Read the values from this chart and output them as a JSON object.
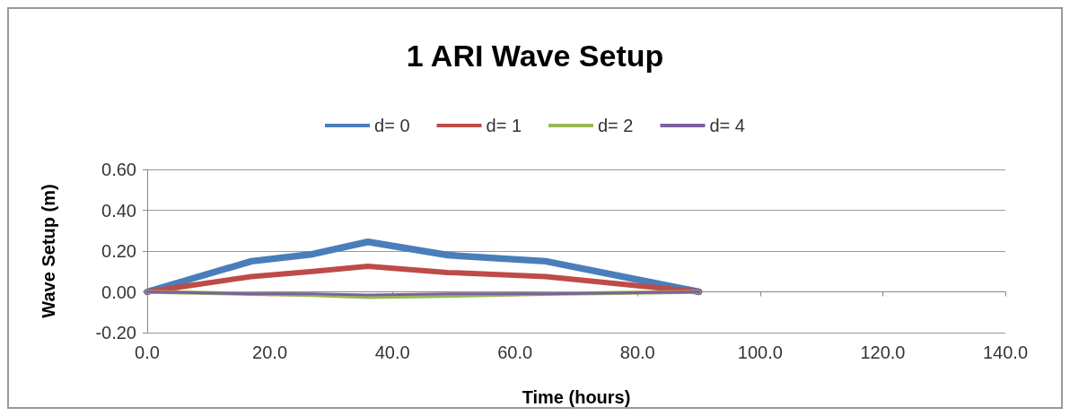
{
  "chart_data": {
    "type": "line",
    "title": "1 ARI Wave Setup",
    "xlabel": "Time (hours)",
    "ylabel": "Wave Setup (m)",
    "x": [
      0,
      17,
      27,
      36,
      49,
      65,
      90
    ],
    "series": [
      {
        "name": "d= 0",
        "color": "#4a7ebb",
        "values": [
          0,
          0.15,
          0.185,
          0.245,
          0.18,
          0.15,
          0
        ]
      },
      {
        "name": "d= 1",
        "color": "#be4b48",
        "values": [
          0,
          0.075,
          0.1,
          0.125,
          0.095,
          0.075,
          0
        ]
      },
      {
        "name": "d= 2",
        "color": "#98b954",
        "values": [
          0,
          -0.01,
          -0.015,
          -0.025,
          -0.02,
          -0.01,
          0
        ]
      },
      {
        "name": "d= 4",
        "color": "#7d60a0",
        "values": [
          0,
          -0.01,
          -0.01,
          -0.015,
          -0.01,
          -0.01,
          0
        ]
      }
    ],
    "xlim": [
      0,
      140
    ],
    "xticks": [
      {
        "value": 0,
        "label": "0.0"
      },
      {
        "value": 20,
        "label": "20.0"
      },
      {
        "value": 40,
        "label": "40.0"
      },
      {
        "value": 60,
        "label": "60.0"
      },
      {
        "value": 80,
        "label": "80.0"
      },
      {
        "value": 100,
        "label": "100.0"
      },
      {
        "value": 120,
        "label": "120.0"
      },
      {
        "value": 140,
        "label": "140.0"
      }
    ],
    "ylim": [
      -0.2,
      0.6
    ],
    "yticks": [
      {
        "value": -0.2,
        "label": "-0.20"
      },
      {
        "value": 0,
        "label": "0.00"
      },
      {
        "value": 0.2,
        "label": "0.20"
      },
      {
        "value": 0.4,
        "label": "0.40"
      },
      {
        "value": 0.6,
        "label": "0.60"
      }
    ],
    "grid": "y",
    "legend": "top",
    "marker": "none",
    "line_style": "solid"
  }
}
